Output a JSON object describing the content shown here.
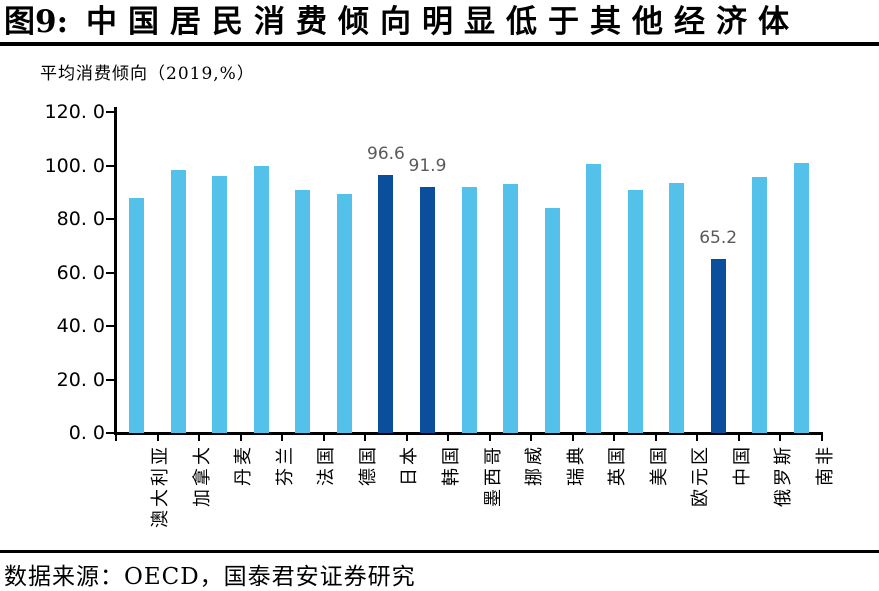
{
  "header": {
    "figure_label": "图9:",
    "title": "中国居民消费倾向明显低于其他经济体"
  },
  "chart_data": {
    "type": "bar",
    "subtitle": "平均消费倾向（2019,%）",
    "categories": [
      "澳大利亚",
      "加拿大",
      "丹麦",
      "芬兰",
      "法国",
      "德国",
      "日本",
      "韩国",
      "墨西哥",
      "挪威",
      "瑞典",
      "英国",
      "美国",
      "欧元区",
      "中国",
      "俄罗斯",
      "南非"
    ],
    "values": [
      87.7,
      98.2,
      96.0,
      99.8,
      91.0,
      89.2,
      96.6,
      91.9,
      91.8,
      93.1,
      84.2,
      100.6,
      91.0,
      93.5,
      65.2,
      95.8,
      100.8
    ],
    "highlight_indexes": [
      6,
      7,
      14
    ],
    "data_labels": {
      "6": "96.6",
      "7": "91.9",
      "14": "65.2"
    },
    "ylim": [
      0,
      120
    ],
    "yticks": [
      {
        "v": 0,
        "label": "0. 0"
      },
      {
        "v": 20,
        "label": "20. 0"
      },
      {
        "v": 40,
        "label": "40. 0"
      },
      {
        "v": 60,
        "label": "60. 0"
      },
      {
        "v": 80,
        "label": "80. 0"
      },
      {
        "v": 100,
        "label": "100. 0"
      },
      {
        "v": 120,
        "label": "120. 0"
      }
    ],
    "grid": "off",
    "legend": "none",
    "colors": {
      "bar": "#54C1EB",
      "bar_highlight": "#0B4E9B",
      "data_label": "#595959",
      "axis": "#000000"
    }
  },
  "footer": {
    "source": "数据来源：OECD，国泰君安证券研究"
  }
}
